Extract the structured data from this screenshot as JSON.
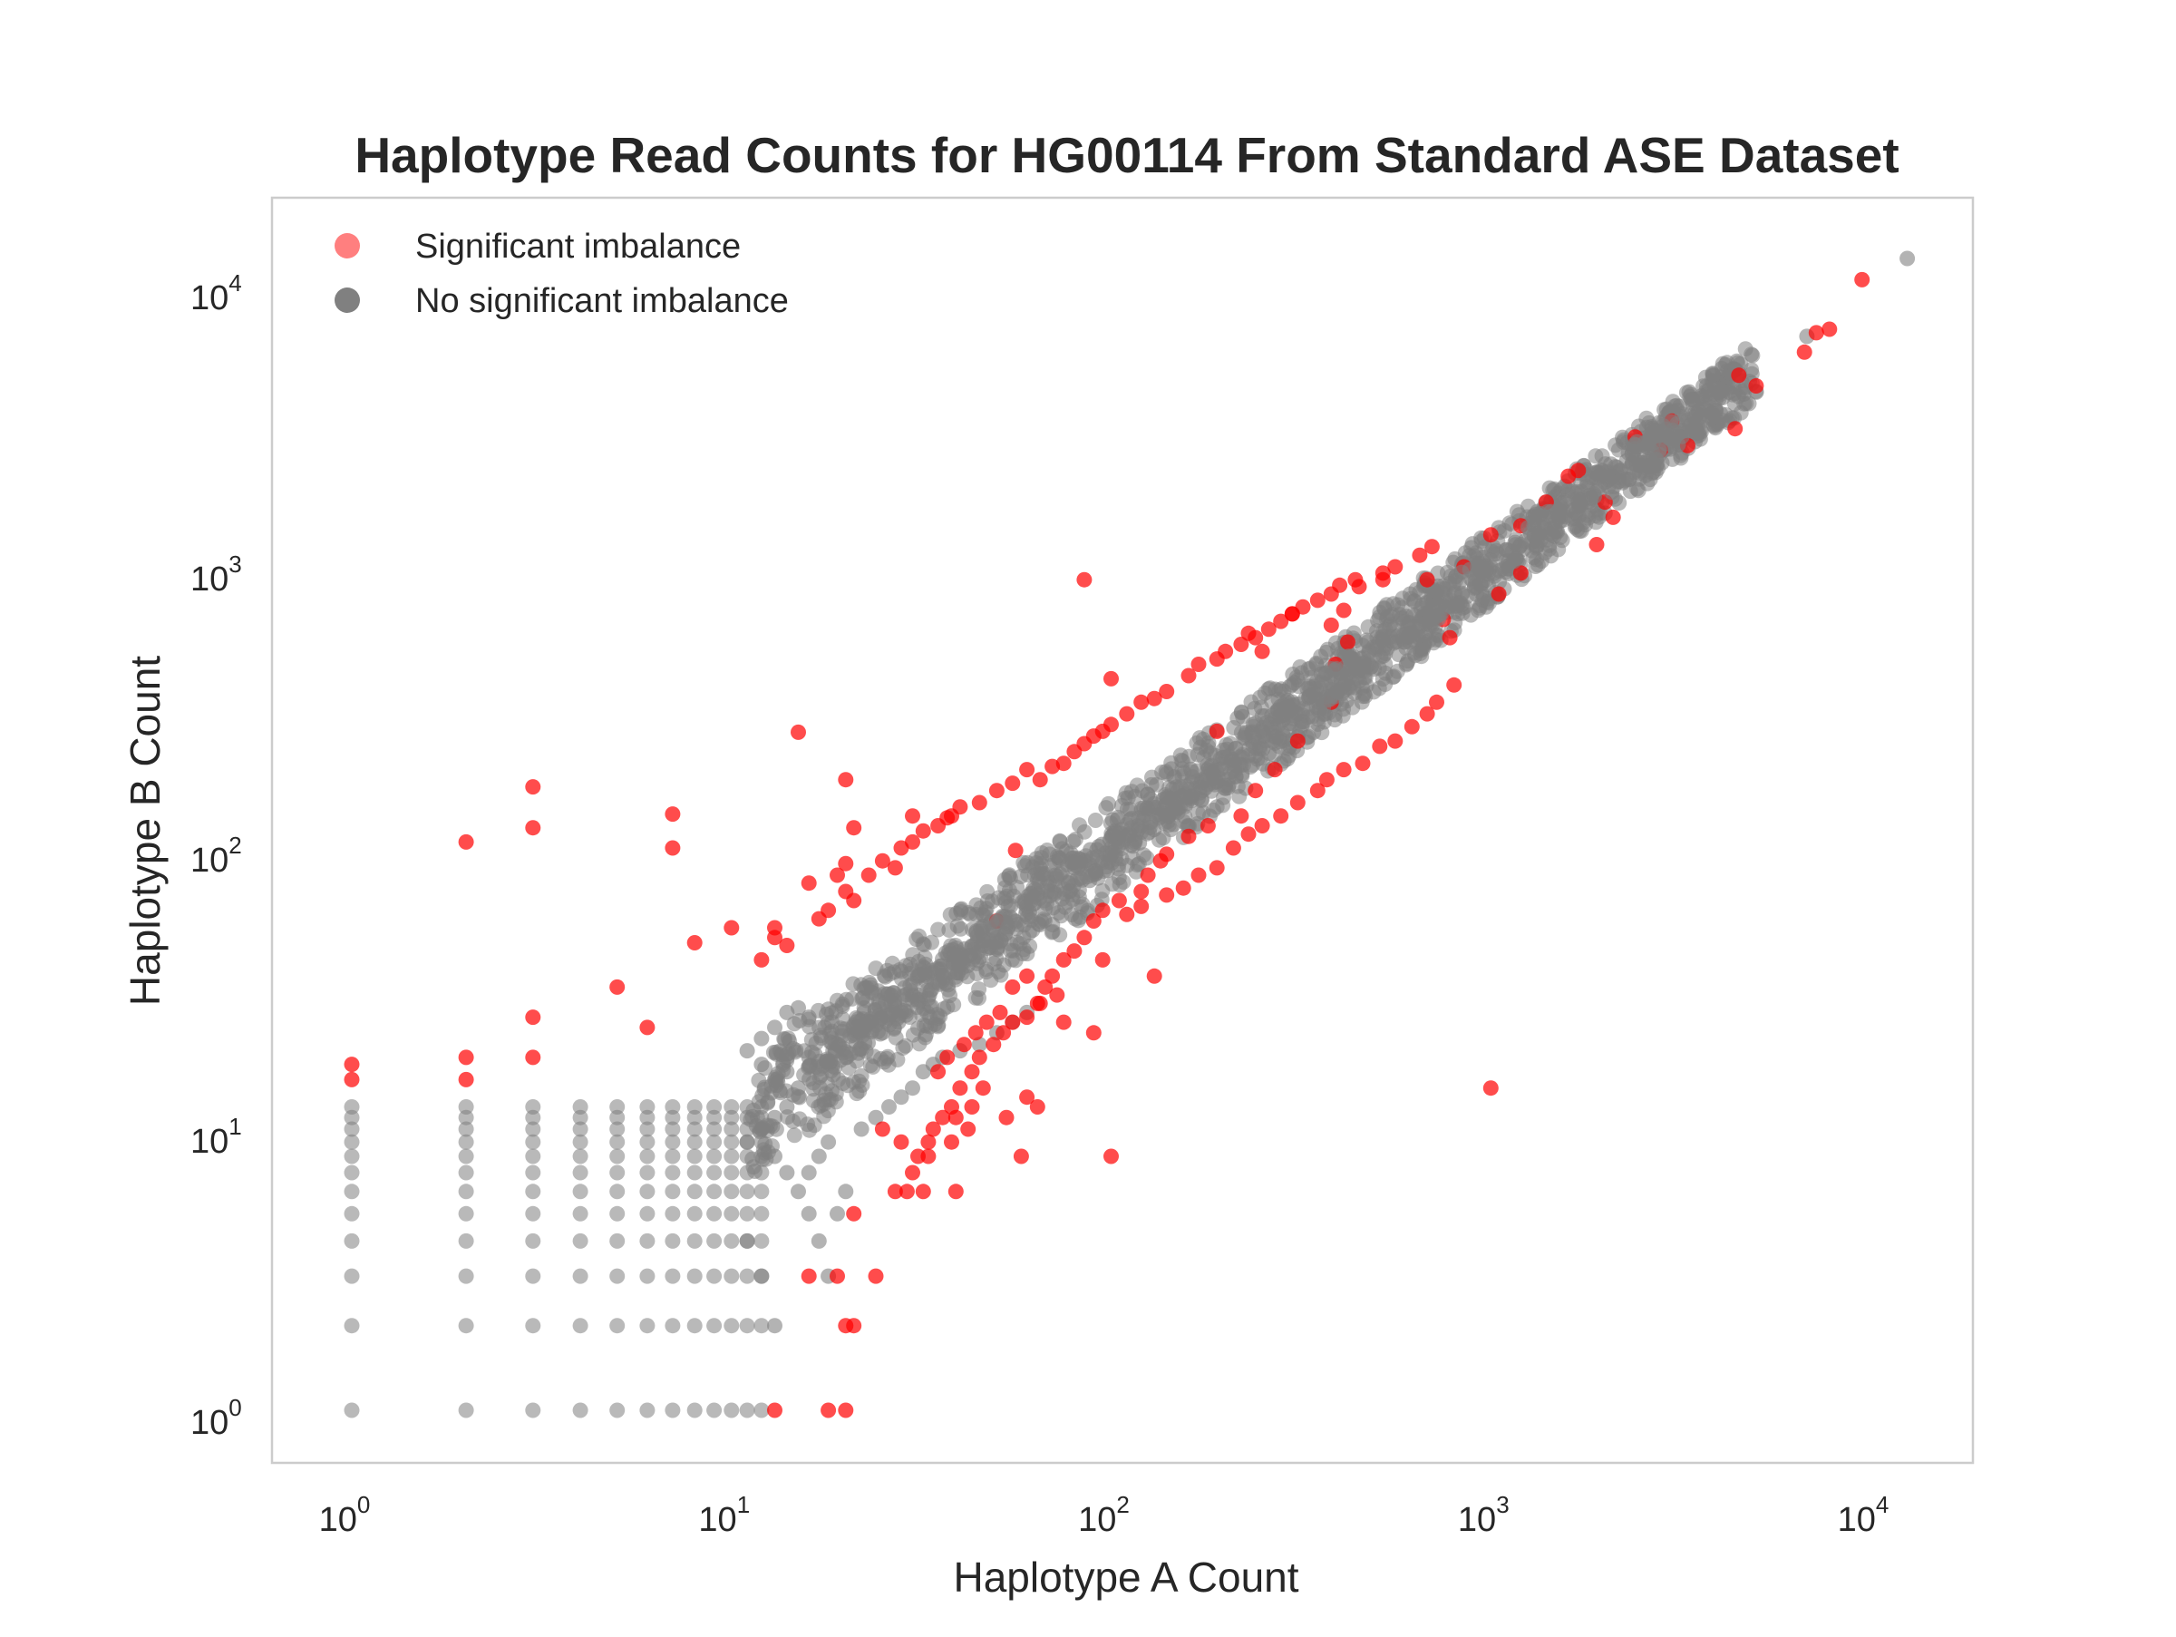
{
  "chart_data": {
    "type": "scatter",
    "title": "Haplotype Read Counts for HG00114 From Standard ASE Dataset",
    "xlabel": "Haplotype A Count",
    "ylabel": "Haplotype B Count",
    "xscale": "log",
    "yscale": "log",
    "xlim": [
      0.6,
      20000
    ],
    "ylim": [
      0.6,
      20000
    ],
    "grid": false,
    "legend_position": "top-left",
    "x_ticks": [
      {
        "value": 1,
        "base": "10",
        "exp": "0"
      },
      {
        "value": 10,
        "base": "10",
        "exp": "1"
      },
      {
        "value": 100,
        "base": "10",
        "exp": "2"
      },
      {
        "value": 1000,
        "base": "10",
        "exp": "3"
      },
      {
        "value": 10000,
        "base": "10",
        "exp": "4"
      }
    ],
    "y_ticks": [
      {
        "value": 1,
        "base": "10",
        "exp": "0"
      },
      {
        "value": 10,
        "base": "10",
        "exp": "1"
      },
      {
        "value": 100,
        "base": "10",
        "exp": "2"
      },
      {
        "value": 1000,
        "base": "10",
        "exp": "3"
      },
      {
        "value": 10000,
        "base": "10",
        "exp": "4"
      }
    ],
    "series": [
      {
        "name": "No significant imbalance",
        "color": "#808080",
        "grid_points": {
          "x_range": [
            1,
            12
          ],
          "y_range": [
            1,
            12
          ]
        },
        "points": [
          [
            12500,
            12500
          ],
          [
            6800,
            6600
          ],
          [
            4000,
            4200
          ],
          [
            3700,
            4100
          ],
          [
            3000,
            3100
          ],
          [
            2200,
            2200
          ],
          [
            2000,
            2000
          ],
          [
            1800,
            1900
          ],
          [
            1700,
            1700
          ],
          [
            1500,
            1500
          ],
          [
            1300,
            1300
          ],
          [
            1200,
            1200
          ],
          [
            1100,
            1150
          ],
          [
            1000,
            1000
          ],
          [
            900,
            950
          ],
          [
            800,
            800
          ],
          [
            700,
            760
          ],
          [
            650,
            640
          ],
          [
            600,
            580
          ],
          [
            500,
            520
          ],
          [
            450,
            440
          ],
          [
            400,
            420
          ],
          [
            350,
            330
          ],
          [
            300,
            310
          ],
          [
            250,
            260
          ],
          [
            200,
            210
          ],
          [
            150,
            160
          ],
          [
            120,
            120
          ],
          [
            100,
            100
          ],
          [
            80,
            85
          ],
          [
            60,
            62
          ],
          [
            50,
            48
          ],
          [
            40,
            42
          ],
          [
            30,
            30
          ],
          [
            25,
            22
          ],
          [
            20,
            18
          ],
          [
            15,
            14
          ],
          [
            14,
            12
          ],
          [
            13,
            11
          ],
          [
            12,
            10
          ],
          [
            11,
            9
          ],
          [
            13,
            8
          ],
          [
            14,
            7
          ],
          [
            15,
            6
          ],
          [
            16,
            5
          ],
          [
            17,
            4
          ],
          [
            18,
            3
          ],
          [
            19,
            5
          ],
          [
            20,
            6
          ],
          [
            13,
            2
          ],
          [
            12,
            3
          ],
          [
            11,
            4
          ],
          [
            16,
            7
          ],
          [
            17,
            8
          ],
          [
            18,
            9
          ],
          [
            22,
            10
          ],
          [
            24,
            11
          ],
          [
            26,
            12
          ],
          [
            28,
            13
          ],
          [
            30,
            14
          ],
          [
            32,
            16
          ],
          [
            34,
            17
          ],
          [
            36,
            18
          ],
          [
            40,
            19
          ],
          [
            45,
            20
          ],
          [
            50,
            22
          ],
          [
            55,
            24
          ],
          [
            60,
            26
          ],
          [
            16,
            25
          ],
          [
            15,
            27
          ],
          [
            14,
            26
          ],
          [
            13,
            23
          ],
          [
            12,
            21
          ],
          [
            11,
            19
          ],
          [
            12,
            17
          ],
          [
            13,
            15
          ],
          [
            14,
            16
          ],
          [
            16,
            18
          ]
        ]
      },
      {
        "name": "Significant imbalance",
        "color": "#ff0000",
        "points": [
          [
            9500,
            10500
          ],
          [
            7800,
            7000
          ],
          [
            7200,
            6800
          ],
          [
            6700,
            5800
          ],
          [
            4500,
            4800
          ],
          [
            5000,
            4400
          ],
          [
            4400,
            3100
          ],
          [
            3300,
            2700
          ],
          [
            3000,
            3300
          ],
          [
            2800,
            2600
          ],
          [
            2400,
            2900
          ],
          [
            2100,
            1500
          ],
          [
            1700,
            2200
          ],
          [
            1600,
            2100
          ],
          [
            2000,
            1700
          ],
          [
            1400,
            1700
          ],
          [
            1200,
            1400
          ],
          [
            1000,
            1300
          ],
          [
            1900,
            1200
          ],
          [
            1200,
            950
          ],
          [
            1050,
            800
          ],
          [
            850,
            1000
          ],
          [
            750,
            650
          ],
          [
            680,
            900
          ],
          [
            780,
            560
          ],
          [
            520,
            900
          ],
          [
            450,
            850
          ],
          [
            410,
            700
          ],
          [
            420,
            540
          ],
          [
            380,
            620
          ],
          [
            390,
            450
          ],
          [
            380,
            330
          ],
          [
            300,
            680
          ],
          [
            250,
            500
          ],
          [
            230,
            580
          ],
          [
            310,
            240
          ],
          [
            270,
            190
          ],
          [
            240,
            160
          ],
          [
            190,
            260
          ],
          [
            220,
            130
          ],
          [
            180,
            120
          ],
          [
            160,
            110
          ],
          [
            140,
            95
          ],
          [
            135,
            90
          ],
          [
            125,
            80
          ],
          [
            120,
            70
          ],
          [
            105,
            65
          ],
          [
            95,
            60
          ],
          [
            90,
            55
          ],
          [
            85,
            48
          ],
          [
            80,
            43
          ],
          [
            75,
            40
          ],
          [
            70,
            35
          ],
          [
            67,
            32
          ],
          [
            65,
            28
          ],
          [
            60,
            25
          ],
          [
            55,
            24
          ],
          [
            52,
            22
          ],
          [
            49,
            20
          ],
          [
            45,
            18
          ],
          [
            43,
            16
          ],
          [
            40,
            14
          ],
          [
            38,
            12
          ],
          [
            36,
            11
          ],
          [
            34,
            10
          ],
          [
            33,
            9
          ],
          [
            31,
            8
          ],
          [
            30,
            7
          ],
          [
            29,
            6
          ],
          [
            27,
            6
          ],
          [
            32,
            6
          ],
          [
            39,
            6
          ],
          [
            58,
            8
          ],
          [
            100,
            8
          ],
          [
            38,
            9
          ],
          [
            33,
            8
          ],
          [
            28,
            9
          ],
          [
            25,
            10
          ],
          [
            21,
            5
          ],
          [
            20,
            2
          ],
          [
            21,
            2
          ],
          [
            19,
            3
          ],
          [
            16,
            3
          ],
          [
            24,
            3
          ],
          [
            18,
            1
          ],
          [
            20,
            1
          ],
          [
            13,
            1
          ],
          [
            1,
            17
          ],
          [
            1,
            15
          ],
          [
            2,
            18
          ],
          [
            2,
            15
          ],
          [
            3,
            18
          ],
          [
            3,
            25
          ],
          [
            3,
            165
          ],
          [
            3,
            118
          ],
          [
            2,
            105
          ],
          [
            7,
            132
          ],
          [
            7,
            100
          ],
          [
            15,
            258
          ],
          [
            20,
            175
          ],
          [
            21,
            118
          ],
          [
            30,
            130
          ],
          [
            37,
            128
          ],
          [
            19,
            80
          ],
          [
            20,
            88
          ],
          [
            16,
            75
          ],
          [
            13,
            52
          ],
          [
            10,
            52
          ],
          [
            8,
            46
          ],
          [
            5,
            32
          ],
          [
            6,
            23
          ],
          [
            12,
            40
          ],
          [
            13,
            48
          ],
          [
            14,
            45
          ],
          [
            17,
            56
          ],
          [
            18,
            60
          ],
          [
            20,
            70
          ],
          [
            21,
            65
          ],
          [
            23,
            80
          ],
          [
            25,
            90
          ],
          [
            27,
            85
          ],
          [
            28,
            100
          ],
          [
            30,
            105
          ],
          [
            32,
            115
          ],
          [
            35,
            120
          ],
          [
            38,
            130
          ],
          [
            40,
            140
          ],
          [
            45,
            145
          ],
          [
            50,
            160
          ],
          [
            55,
            170
          ],
          [
            60,
            190
          ],
          [
            65,
            175
          ],
          [
            70,
            195
          ],
          [
            75,
            200
          ],
          [
            80,
            220
          ],
          [
            85,
            235
          ],
          [
            90,
            250
          ],
          [
            95,
            260
          ],
          [
            100,
            275
          ],
          [
            110,
            300
          ],
          [
            120,
            330
          ],
          [
            130,
            340
          ],
          [
            140,
            360
          ],
          [
            160,
            410
          ],
          [
            170,
            450
          ],
          [
            190,
            470
          ],
          [
            200,
            500
          ],
          [
            220,
            530
          ],
          [
            240,
            560
          ],
          [
            260,
            600
          ],
          [
            280,
            640
          ],
          [
            300,
            680
          ],
          [
            320,
            720
          ],
          [
            350,
            760
          ],
          [
            380,
            800
          ],
          [
            400,
            860
          ],
          [
            440,
            900
          ],
          [
            520,
            950
          ],
          [
            560,
            1000
          ],
          [
            650,
            1100
          ],
          [
            700,
            1180
          ],
          [
            50,
            55
          ],
          [
            56,
            98
          ],
          [
            85,
            900
          ],
          [
            100,
            400
          ],
          [
            1000,
            14
          ],
          [
            130,
            35
          ],
          [
            95,
            40
          ],
          [
            90,
            22
          ],
          [
            72,
            30
          ],
          [
            75,
            24
          ],
          [
            60,
            35
          ],
          [
            64,
            28
          ],
          [
            55,
            32
          ],
          [
            51,
            26
          ],
          [
            47,
            24
          ],
          [
            44,
            22
          ],
          [
            41,
            20
          ],
          [
            37,
            18
          ],
          [
            35,
            16
          ],
          [
            64,
            12
          ],
          [
            46,
            14
          ],
          [
            43,
            12
          ],
          [
            39,
            11
          ],
          [
            60,
            13
          ],
          [
            42,
            10
          ],
          [
            53,
            11
          ],
          [
            110,
            58
          ],
          [
            120,
            62
          ],
          [
            140,
            68
          ],
          [
            155,
            72
          ],
          [
            170,
            80
          ],
          [
            190,
            85
          ],
          [
            210,
            100
          ],
          [
            230,
            112
          ],
          [
            250,
            120
          ],
          [
            280,
            130
          ],
          [
            310,
            145
          ],
          [
            350,
            160
          ],
          [
            370,
            175
          ],
          [
            410,
            190
          ],
          [
            460,
            200
          ],
          [
            510,
            230
          ],
          [
            560,
            240
          ],
          [
            620,
            270
          ],
          [
            680,
            300
          ],
          [
            720,
            330
          ],
          [
            800,
            380
          ]
        ]
      }
    ]
  }
}
